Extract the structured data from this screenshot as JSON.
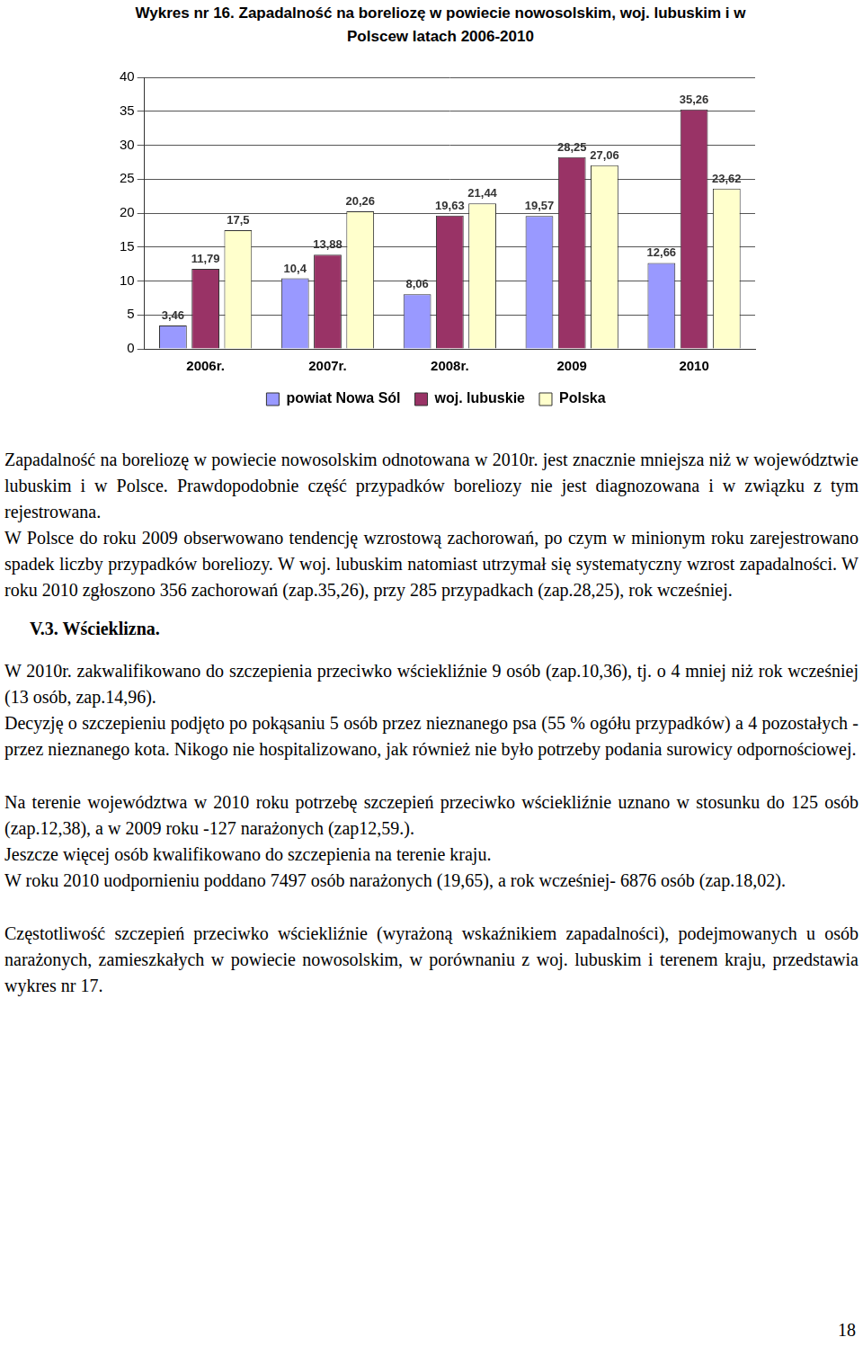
{
  "chart_data": {
    "type": "bar",
    "title": "Wykres nr 16. Zapadalność na boreliozę w powiecie nowosolskim, woj. lubuskim i w Polscew latach 2006-2010",
    "categories": [
      "2006r.",
      "2007r.",
      "2008r.",
      "2009",
      "2010"
    ],
    "series": [
      {
        "name": "powiat Nowa Sól",
        "color": "#9999ff",
        "values": [
          3.46,
          10.4,
          8.06,
          19.57,
          12.66
        ],
        "value_labels": [
          "3,46",
          "10,4",
          "8,06",
          "19,57",
          "12,66"
        ]
      },
      {
        "name": "woj. lubuskie",
        "color": "#993366",
        "values": [
          11.79,
          13.88,
          19.63,
          28.25,
          35.26
        ],
        "value_labels": [
          "11,79",
          "13,88",
          "19,63",
          "28,25",
          "35,26"
        ]
      },
      {
        "name": "Polska",
        "color": "#ffffcc",
        "values": [
          17.5,
          20.26,
          21.44,
          27.06,
          23.62
        ],
        "value_labels": [
          "17,5",
          "20,26",
          "21,44",
          "27,06",
          "23,62"
        ]
      }
    ],
    "ylim": [
      0,
      40
    ],
    "yticks": [
      0,
      5,
      10,
      15,
      20,
      25,
      30,
      35,
      40
    ],
    "grid": true,
    "legend": "bottom",
    "data_labels": true
  },
  "document": {
    "chart_text_paragraphs": [
      "Zapadalność na boreliozę w  powiecie nowosolskim odnotowana w 2010r. jest znacznie mniejsza niż w województwie lubuskim i w Polsce. Prawdopodobnie część przypadków boreliozy nie jest diagnozowana i  w związku z tym rejestrowana.",
      "W Polsce do roku 2009 obserwowano tendencję wzrostową zachorowań, po czym w minionym roku zarejestrowano spadek liczby przypadków boreliozy. W woj. lubuskim natomiast utrzymał  się systematyczny  wzrost zapadalności. W roku 2010 zgłoszono 356 zachorowań (zap.35,26), przy 285 przypadkach (zap.28,25), rok wcześniej."
    ],
    "heading": "V.3. Wścieklizna.",
    "section_paragraphs": [
      [
        "W 2010r. zakwalifikowano do szczepienia przeciwko wściekliźnie 9 osób (zap.10,36), tj. o 4 mniej niż rok wcześniej (13 osób, zap.14,96).",
        "Decyzję o szczepieniu podjęto po pokąsaniu 5  osób przez nieznanego psa (55 % ogółu przypadków) a 4 pozostałych - przez nieznanego kota. Nikogo nie hospitalizowano, jak również  nie było potrzeby  podania  surowicy odpornościowej."
      ],
      [
        "Na terenie województwa w 2010 roku potrzebę szczepień przeciwko wściekliźnie uznano w stosunku do 125 osób (zap.12,38), a w 2009 roku -127 narażonych (zap12,59.).",
        "Jeszcze więcej osób kwalifikowano do szczepienia na terenie kraju.",
        "W roku 2010  uodpornieniu poddano 7497 osób narażonych (19,65), a rok wcześniej- 6876 osób (zap.18,02)."
      ],
      [
        "Częstotliwość szczepień przeciwko wściekliźnie (wyrażoną wskaźnikiem zapadalności), podejmowanych u osób narażonych, zamieszkałych w powiecie nowosolskim, w porównaniu z woj. lubuskim i terenem kraju, przedstawia wykres nr 17."
      ]
    ],
    "page_number": "18"
  }
}
